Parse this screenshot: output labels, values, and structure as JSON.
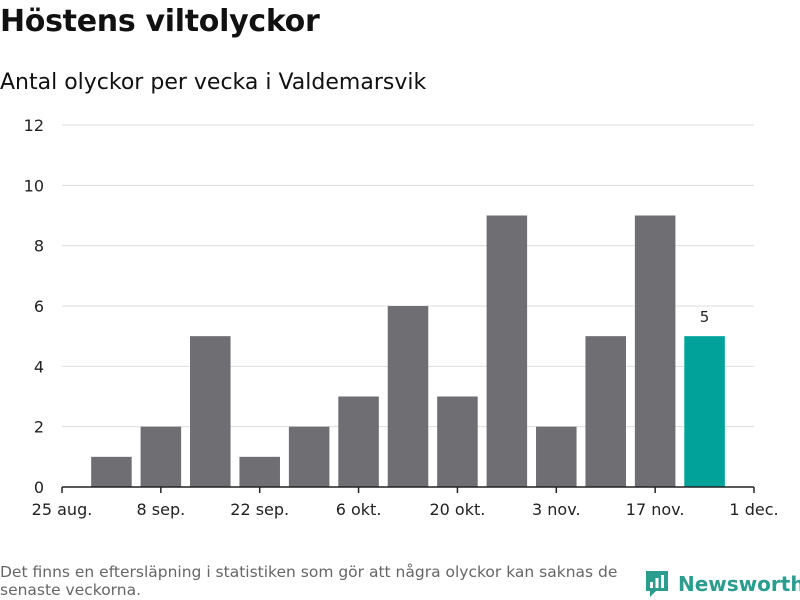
{
  "chart_data": {
    "type": "bar",
    "title": "Höstens viltolyckor",
    "subtitle": "Antal olyckor per vecka i Valdemarsvik",
    "values": [
      1,
      2,
      5,
      1,
      2,
      3,
      6,
      3,
      9,
      2,
      5,
      9,
      5
    ],
    "highlight_index": 12,
    "highlight_label": "5",
    "x_tick_labels": [
      "25 aug.",
      "8 sep.",
      "22 sep.",
      "6 okt.",
      "20 okt.",
      "3 nov.",
      "17 nov.",
      "1 dec."
    ],
    "y_ticks": [
      0,
      2,
      4,
      6,
      8,
      10,
      12
    ],
    "ylim": [
      0,
      12
    ],
    "grid": true,
    "colors": {
      "bar": "#6e6e73",
      "highlight": "#00a29a",
      "grid": "#dddddd",
      "axis": "#222222"
    }
  },
  "footnote": "Det finns en eftersläpning i statistiken som gör att några olyckor kan saknas de senaste veckorna.",
  "brand": {
    "name": "Newsworthy",
    "icon": "newsworthy-logo-icon",
    "color": "#2a9d8f"
  }
}
